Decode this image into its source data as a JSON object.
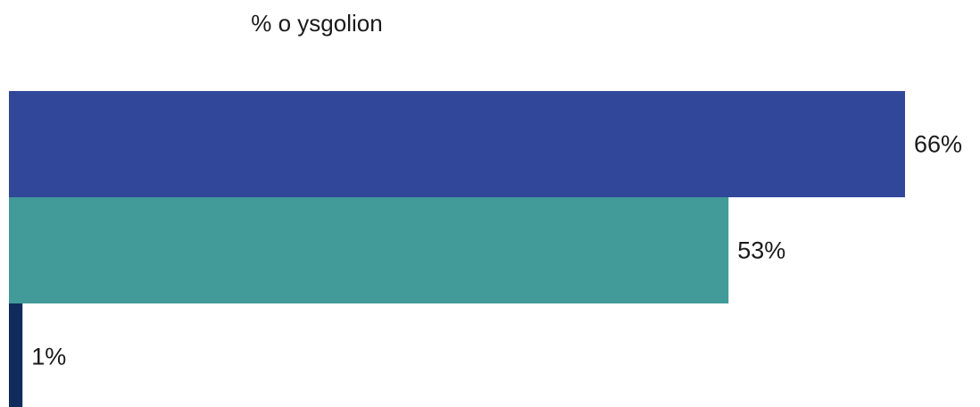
{
  "chart_data": {
    "type": "bar",
    "orientation": "horizontal",
    "title": "% o ysgolion",
    "categories": [
      "",
      "",
      ""
    ],
    "values": [
      66,
      53,
      1
    ],
    "value_labels": [
      "66%",
      "53%",
      "1%"
    ],
    "colors": [
      "#31479a",
      "#429a99",
      "#102a5c"
    ],
    "xlim": [
      0,
      66
    ],
    "grid": false,
    "legend": "none"
  }
}
